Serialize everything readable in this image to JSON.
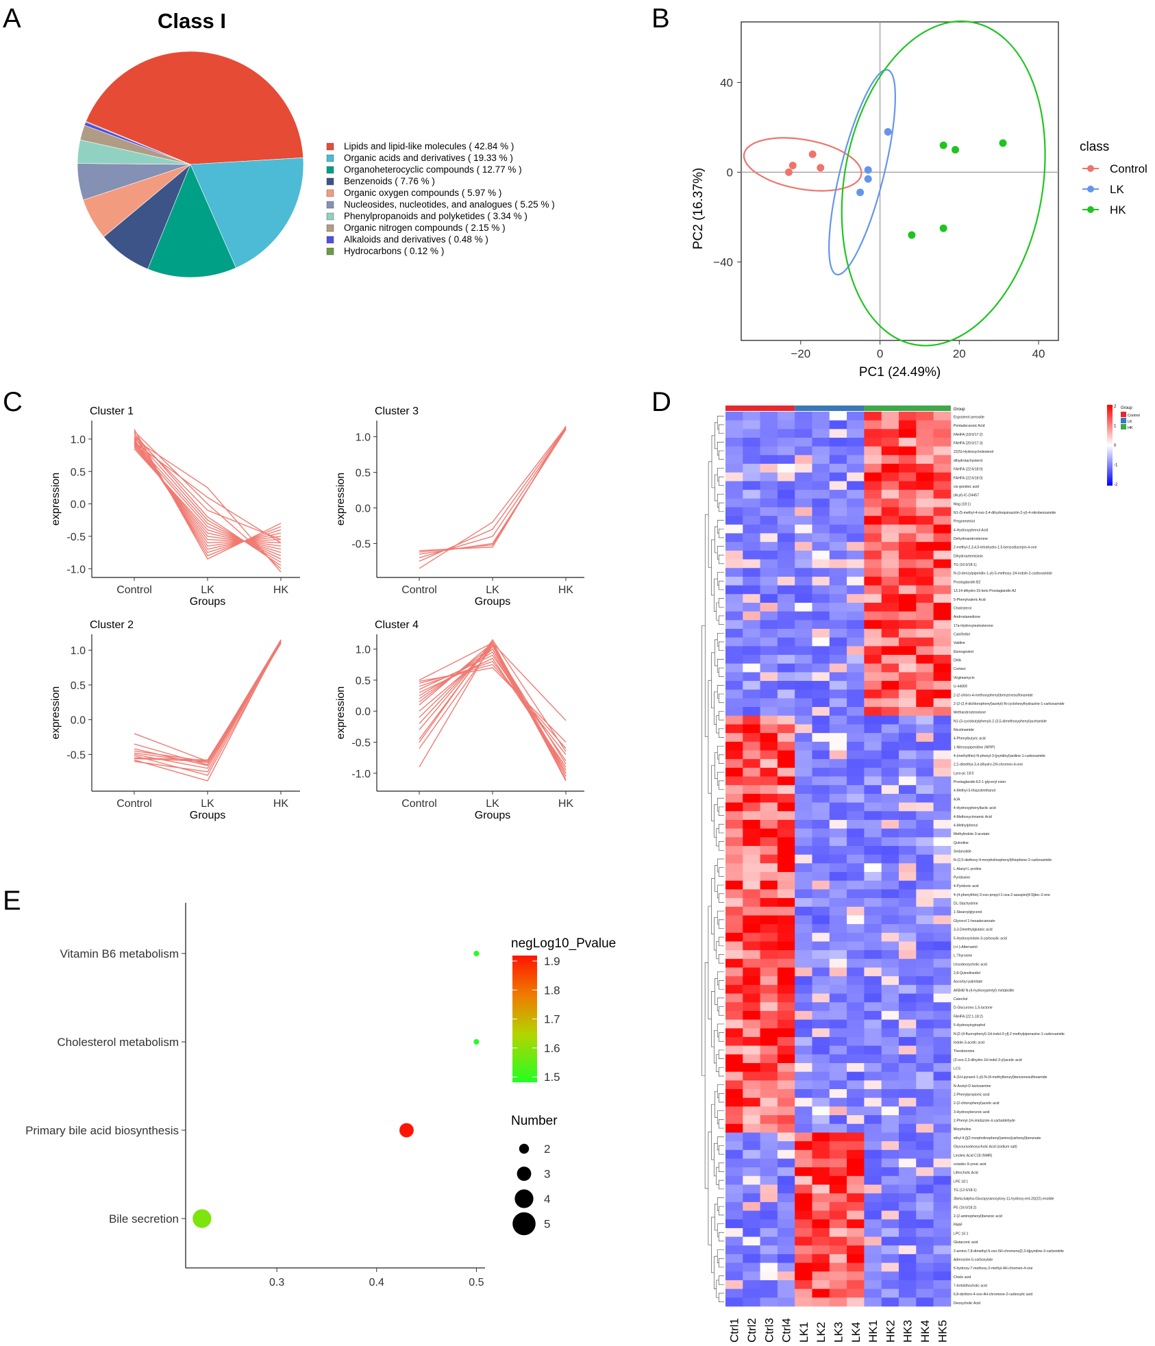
{
  "panels": {
    "A": {
      "letter": "A",
      "title": "Class I"
    },
    "B": {
      "letter": "B"
    },
    "C": {
      "letter": "C"
    },
    "D": {
      "letter": "D"
    },
    "E": {
      "letter": "E"
    }
  },
  "colors": {
    "control": "#f0736b",
    "lk": "#6495ed",
    "hk": "#1fc41f",
    "line": "#f07a72",
    "heat_low": "#1a1aff",
    "heat_mid": "#ffffff",
    "heat_high": "#ff1a1a"
  },
  "chart_data": [
    {
      "panel": "A",
      "type": "pie",
      "title": "Class I",
      "slices": [
        {
          "label": "Lipids and lipid-like molecules",
          "pct_label": "( 42.84 % )",
          "value": 42.84,
          "color": "#e64b35"
        },
        {
          "label": "Organic acids and derivatives",
          "pct_label": "( 19.33 % )",
          "value": 19.33,
          "color": "#4dbbd5"
        },
        {
          "label": "Organoheterocyclic compounds",
          "pct_label": "( 12.77 % )",
          "value": 12.77,
          "color": "#00a087"
        },
        {
          "label": "Benzenoids",
          "pct_label": "( 7.76 % )",
          "value": 7.76,
          "color": "#3c5488"
        },
        {
          "label": "Organic oxygen compounds",
          "pct_label": "( 5.97 % )",
          "value": 5.97,
          "color": "#f39b7f"
        },
        {
          "label": "Nucleosides, nucleotides, and analogues",
          "pct_label": "( 5.25 % )",
          "value": 5.25,
          "color": "#8491b4"
        },
        {
          "label": "Phenylpropanoids and polyketides",
          "pct_label": "( 3.34 % )",
          "value": 3.34,
          "color": "#91d1c2"
        },
        {
          "label": "Organic nitrogen compounds",
          "pct_label": "( 2.15 % )",
          "value": 2.15,
          "color": "#b09c85"
        },
        {
          "label": "Alkaloids and derivatives",
          "pct_label": "( 0.48 % )",
          "value": 0.48,
          "color": "#5050e0"
        },
        {
          "label": "Hydrocarbons",
          "pct_label": "( 0.12 % )",
          "value": 0.12,
          "color": "#6a9a4a"
        }
      ]
    },
    {
      "panel": "B",
      "type": "scatter",
      "xlabel": "PC1 (24.49%)",
      "ylabel": "PC2 (16.37%)",
      "xlim": [
        -35,
        45
      ],
      "ylim": [
        -75,
        67
      ],
      "xticks": [
        -20,
        0,
        20,
        40
      ],
      "yticks": [
        -40,
        0,
        40
      ],
      "legend_title": "class",
      "legend_position": "right",
      "series": [
        {
          "name": "Control",
          "color": "#f0736b",
          "points": [
            [
              -23,
              0
            ],
            [
              -22,
              3
            ],
            [
              -17,
              8
            ],
            [
              -15,
              2
            ]
          ],
          "ellipse": {
            "cx": -19.5,
            "cy": 3.5,
            "rx": 15,
            "ry": 11,
            "angle": 10
          }
        },
        {
          "name": "LK",
          "color": "#6495ed",
          "points": [
            [
              -5,
              -9
            ],
            [
              -3,
              -3
            ],
            [
              -3,
              1
            ],
            [
              2,
              18
            ]
          ],
          "ellipse": {
            "cx": -4.5,
            "cy": 0,
            "rx": 5.5,
            "ry": 47,
            "angle": 14
          }
        },
        {
          "name": "HK",
          "color": "#1fc41f",
          "points": [
            [
              8,
              -28
            ],
            [
              16,
              12
            ],
            [
              16,
              -25
            ],
            [
              19,
              10
            ],
            [
              31,
              13
            ]
          ],
          "ellipse": {
            "cx": 16,
            "cy": -5,
            "rx": 25,
            "ry": 73,
            "angle": 10
          }
        }
      ]
    },
    {
      "panel": "C",
      "type": "line",
      "x": [
        "Control",
        "LK",
        "HK"
      ],
      "xlabel": "Groups",
      "ylabel": "expression",
      "clusters": [
        {
          "name": "Cluster 1",
          "ylim": [
            -1.05,
            1.2
          ],
          "yticks": [
            1.0,
            0.5,
            0.0,
            -0.5,
            -1.0
          ],
          "lines": [
            [
              1.15,
              -0.85,
              -0.3
            ],
            [
              1.1,
              -0.8,
              -0.35
            ],
            [
              1.05,
              -0.75,
              -0.4
            ],
            [
              1.0,
              -0.7,
              -0.45
            ],
            [
              0.98,
              -0.65,
              -0.5
            ],
            [
              0.95,
              -0.6,
              -0.55
            ],
            [
              0.93,
              -0.55,
              -0.6
            ],
            [
              0.9,
              -0.5,
              -0.65
            ],
            [
              0.88,
              -0.45,
              -0.7
            ],
            [
              0.85,
              -0.4,
              -0.75
            ],
            [
              0.92,
              -0.35,
              -0.8
            ],
            [
              0.96,
              -0.3,
              -0.85
            ],
            [
              1.02,
              -0.25,
              -0.9
            ],
            [
              1.08,
              -0.2,
              -0.95
            ],
            [
              1.12,
              0.0,
              -1.0
            ],
            [
              1.0,
              0.25,
              -1.05
            ],
            [
              0.95,
              0.1,
              -0.6
            ],
            [
              1.05,
              -0.1,
              -0.55
            ]
          ]
        },
        {
          "name": "Cluster 3",
          "ylim": [
            -0.9,
            1.15
          ],
          "yticks": [
            1.0,
            0.5,
            0.0,
            -0.5
          ],
          "lines": [
            [
              -0.6,
              -0.55,
              1.15
            ],
            [
              -0.65,
              -0.5,
              1.1
            ],
            [
              -0.7,
              -0.4,
              1.12
            ],
            [
              -0.75,
              -0.3,
              1.13
            ],
            [
              -0.85,
              -0.2,
              1.14
            ],
            [
              -0.62,
              -0.52,
              1.11
            ]
          ]
        },
        {
          "name": "Cluster 2",
          "ylim": [
            -0.95,
            1.15
          ],
          "yticks": [
            1.0,
            0.5,
            0.0,
            -0.5
          ],
          "lines": [
            [
              -0.2,
              -0.6,
              1.15
            ],
            [
              -0.35,
              -0.65,
              1.12
            ],
            [
              -0.45,
              -0.6,
              1.1
            ],
            [
              -0.5,
              -0.7,
              1.13
            ],
            [
              -0.55,
              -0.58,
              1.1
            ],
            [
              -0.6,
              -0.75,
              1.14
            ],
            [
              -0.52,
              -0.8,
              1.12
            ],
            [
              -0.48,
              -0.62,
              1.11
            ],
            [
              -0.58,
              -0.88,
              1.15
            ],
            [
              -0.42,
              -0.66,
              1.1
            ],
            [
              -0.56,
              -0.6,
              1.13
            ]
          ]
        },
        {
          "name": "Cluster 4",
          "ylim": [
            -1.2,
            1.15
          ],
          "yticks": [
            1.0,
            0.5,
            0.0,
            -0.5,
            -1.0
          ],
          "lines": [
            [
              0.5,
              1.1,
              -0.15
            ],
            [
              0.45,
              0.75,
              -0.6
            ],
            [
              0.4,
              0.8,
              -0.7
            ],
            [
              0.35,
              0.9,
              -0.8
            ],
            [
              0.3,
              0.85,
              -0.9
            ],
            [
              0.25,
              0.95,
              -1.0
            ],
            [
              0.2,
              1.0,
              -1.05
            ],
            [
              0.15,
              1.05,
              -1.1
            ],
            [
              0.1,
              1.1,
              -1.12
            ],
            [
              0.0,
              1.0,
              -0.95
            ],
            [
              -0.1,
              1.05,
              -1.0
            ],
            [
              -0.2,
              1.08,
              -1.05
            ],
            [
              -0.3,
              1.1,
              -1.1
            ],
            [
              -0.45,
              1.12,
              -1.12
            ],
            [
              -0.6,
              1.05,
              -0.85
            ],
            [
              -0.9,
              1.1,
              -1.0
            ],
            [
              0.48,
              0.7,
              -0.5
            ],
            [
              -0.5,
              1.15,
              -0.65
            ]
          ]
        }
      ]
    },
    {
      "panel": "D",
      "type": "heatmap",
      "columns": [
        "Ctrl1",
        "Ctrl2",
        "Ctrl3",
        "Ctrl4",
        "LK1",
        "LK2",
        "LK3",
        "LK4",
        "HK1",
        "HK2",
        "HK3",
        "HK4",
        "HK5"
      ],
      "group_header": "Group",
      "groups": [
        {
          "name": "Control",
          "color": "#e8282e",
          "n": 4
        },
        {
          "name": "LK",
          "color": "#3a78b8",
          "n": 4
        },
        {
          "name": "HK",
          "color": "#3ea84a",
          "n": 5
        }
      ],
      "scale": {
        "min": -2,
        "max": 2,
        "ticks": [
          "2",
          "1",
          "0",
          "-1",
          "-2"
        ]
      },
      "rows_hk_high": [
        "Ergosterol peroxide",
        "Pentadecanoic Acid",
        "FAHFA (18:0/17:2)",
        "FAHFA (20:0/17:3)",
        "22(S)-Hydroxycholesterol",
        "dihydrotachysterol",
        "FAHFA (22:6/18:0)",
        "FAHFA (22:6/18:0)",
        "cis-gondoic acid",
        "(Acyl)-IC-D4457",
        "Mag (18:1)",
        "N1-(5-methyl-4-oxo-3,4-dihydroquinazolin-2-yl)-4-nitrobenzamide",
        "Pregnenetriol",
        "4-Hydroxyphenol Acid",
        "Dehydroandrosterone",
        "2-methyl-2,3,4,5-tetrahydro-1,5-benzodiazepin-4-one",
        "Dihydroartemisinin",
        "TG (16:0/18:1)",
        "N-(3-benzylpiperidin-1-yl)-5-methoxy-1H-indole-2-carboxamide",
        "Prostaglandin B2",
        "13,14-dihydro-15-keto Prostaglandin A2",
        "5-Phenylvaleric Acid",
        "Cholesterol",
        "Androstanedione",
        "17a-Hydroxytestosterone",
        "Calcifediol",
        "Valdine",
        "Etonogestrel",
        "DHA",
        "Cortisol",
        "Virginiamycin",
        "U-44069",
        "2-(2-chloro-4-methoxyphenyl)benzenesulfonamide",
        "2-(2-(2,4-dichlorophenyl)acetyl)-N-cyclohexylhydrazine-1-carboxamide",
        "Methandrostenolone"
      ],
      "rows_ctrl_high": [
        "N1-(3-cyclobutylphenyl)-2-(3,5-dimethoxyphenyl)acetamide",
        "Nicotinamide",
        "4-Phenylbutyric acid",
        "1-Nitrosopiperidine (NPIP)",
        "4-(methylthio)-N-phenyl-3-(pyridinyl)aniline-1-carboxamide",
        "2,2-dimethyl-3,4-dihydro-2H-chromen-4-one",
        "Lyso-pc 18:0",
        "Prostaglandin E2-1-glyceryl ester",
        "4-Methyl-5-thiazoleethanol",
        "AJA",
        "4-Hydroxyphenyllactic acid",
        "4-Methoxycinnamic Acid",
        "4-Methylphenol",
        "Methylindole-3-acetate",
        "Quinoline",
        "Sedanolide",
        "N-(2,5-diethoxy-4-morpholinophenyl)thiophene-2-carboxamide",
        "L-Alanyl-L-proline",
        "Pyridoxine",
        "4-Pyridoxic acid",
        "4-(4-phenylthio)-3-oxo-propyl-1-oxa-2-azaspiro[4.5]dec-2-ene",
        "DL-Stachydrine",
        "1-Stearoylglycerol",
        "Glycerol 1-hexadecanoate",
        "3,3-Dimethylglutaric acid",
        "5-Hydroxyindole-3-carboxylic acid",
        "(+/-)-Alternariol",
        "L-Thyroxine",
        "Ursodeoxycholic acid",
        "2,8-Quinolinediol",
        "Ascorbyl palmitate",
        "AKB48 N-(4-hydroxypentyl) metabolite",
        "Catechol",
        "D-Glucurono-1,5-lactone",
        "FAHFA (22:1-18:2)",
        "5-Hydroxytryptophol",
        "N-[2-(4-fluorophenyl)-1H-indol-3-yl]-2-methylpiperazine-1-carboxamide",
        "Indole-3-acetic acid",
        "Theobromine",
        "(2-oxo-2,3-dihydro-1H-indol-3-yl)acetic acid",
        "LCS",
        "4-(1H-pyrazol-1-yl)-N-(4-methylbenzyl)benzenesulfonamide",
        "N-Acetyl-D-lactosamine",
        "2-Phenylpropionic acid",
        "2-(2-chlorophenyl)acetic acid",
        "3-Hydroxybenzoic acid",
        "2-Phenyl-1H-imidazole-4-carbaldehyde",
        "Morpholine"
      ],
      "rows_lk_high": [
        "ethyl 4-{[(2-morpholinophenyl)amino]carbonyl}benzoate",
        "Glycoursodeoxycholic Acid (sodium salt)",
        "Linoleic Acid C18 (NMR)",
        "octadec-9-ynoic acid",
        "Lithocholic Acid",
        "LPE 18:1",
        "TG (12:0/18:1)",
        "3beta,6alpha-Glucopyranosyloxy-11-hydroxy-ent-20(22)-enolide",
        "PE (16:0/18:2)",
        "2-(2-aminophenyl)benzoic acid",
        "PAAF",
        "LPC 16:1",
        "Glutaconic acid",
        "2-amino-7,8-dimethyl-5-oxo-5H-chromeno[2,3-b]pyridine-3-carbonitrile",
        "Adenosine-5-carboxylate",
        "5-hydroxy-7-methoxy-2-methyl-4H-chromen-4-one",
        "Cholic acid",
        "7-Ketolithocholic acid",
        "6,8-dichloro-4-oxo-4H-chromene-2-carboxylic acid",
        "Deoxycholic Acid"
      ]
    },
    {
      "panel": "E",
      "type": "scatter",
      "categories": [
        "Vitamin B6 metabolism",
        "Cholesterol metabolism",
        "Primary bile acid biosynthesis",
        "Bile secretion"
      ],
      "xticks": [
        0.3,
        0.4,
        0.5
      ],
      "xlim": [
        0.21,
        0.51
      ],
      "points": [
        {
          "pathway": "Vitamin B6 metabolism",
          "x": 0.5,
          "number": 1,
          "neglog10_p": 1.5
        },
        {
          "pathway": "Cholesterol metabolism",
          "x": 0.5,
          "number": 1,
          "neglog10_p": 1.5
        },
        {
          "pathway": "Primary bile acid biosynthesis",
          "x": 0.43,
          "number": 3,
          "neglog10_p": 1.92
        },
        {
          "pathway": "Bile secretion",
          "x": 0.225,
          "number": 4,
          "neglog10_p": 1.6
        }
      ],
      "color_legend": {
        "title": "negLog10_Pvalue",
        "min": 1.5,
        "max": 1.92,
        "ticks": [
          "1.9",
          "1.8",
          "1.7",
          "1.6",
          "1.5"
        ]
      },
      "size_legend": {
        "title": "Number",
        "values": [
          "2",
          "3",
          "4",
          "5"
        ]
      }
    }
  ]
}
